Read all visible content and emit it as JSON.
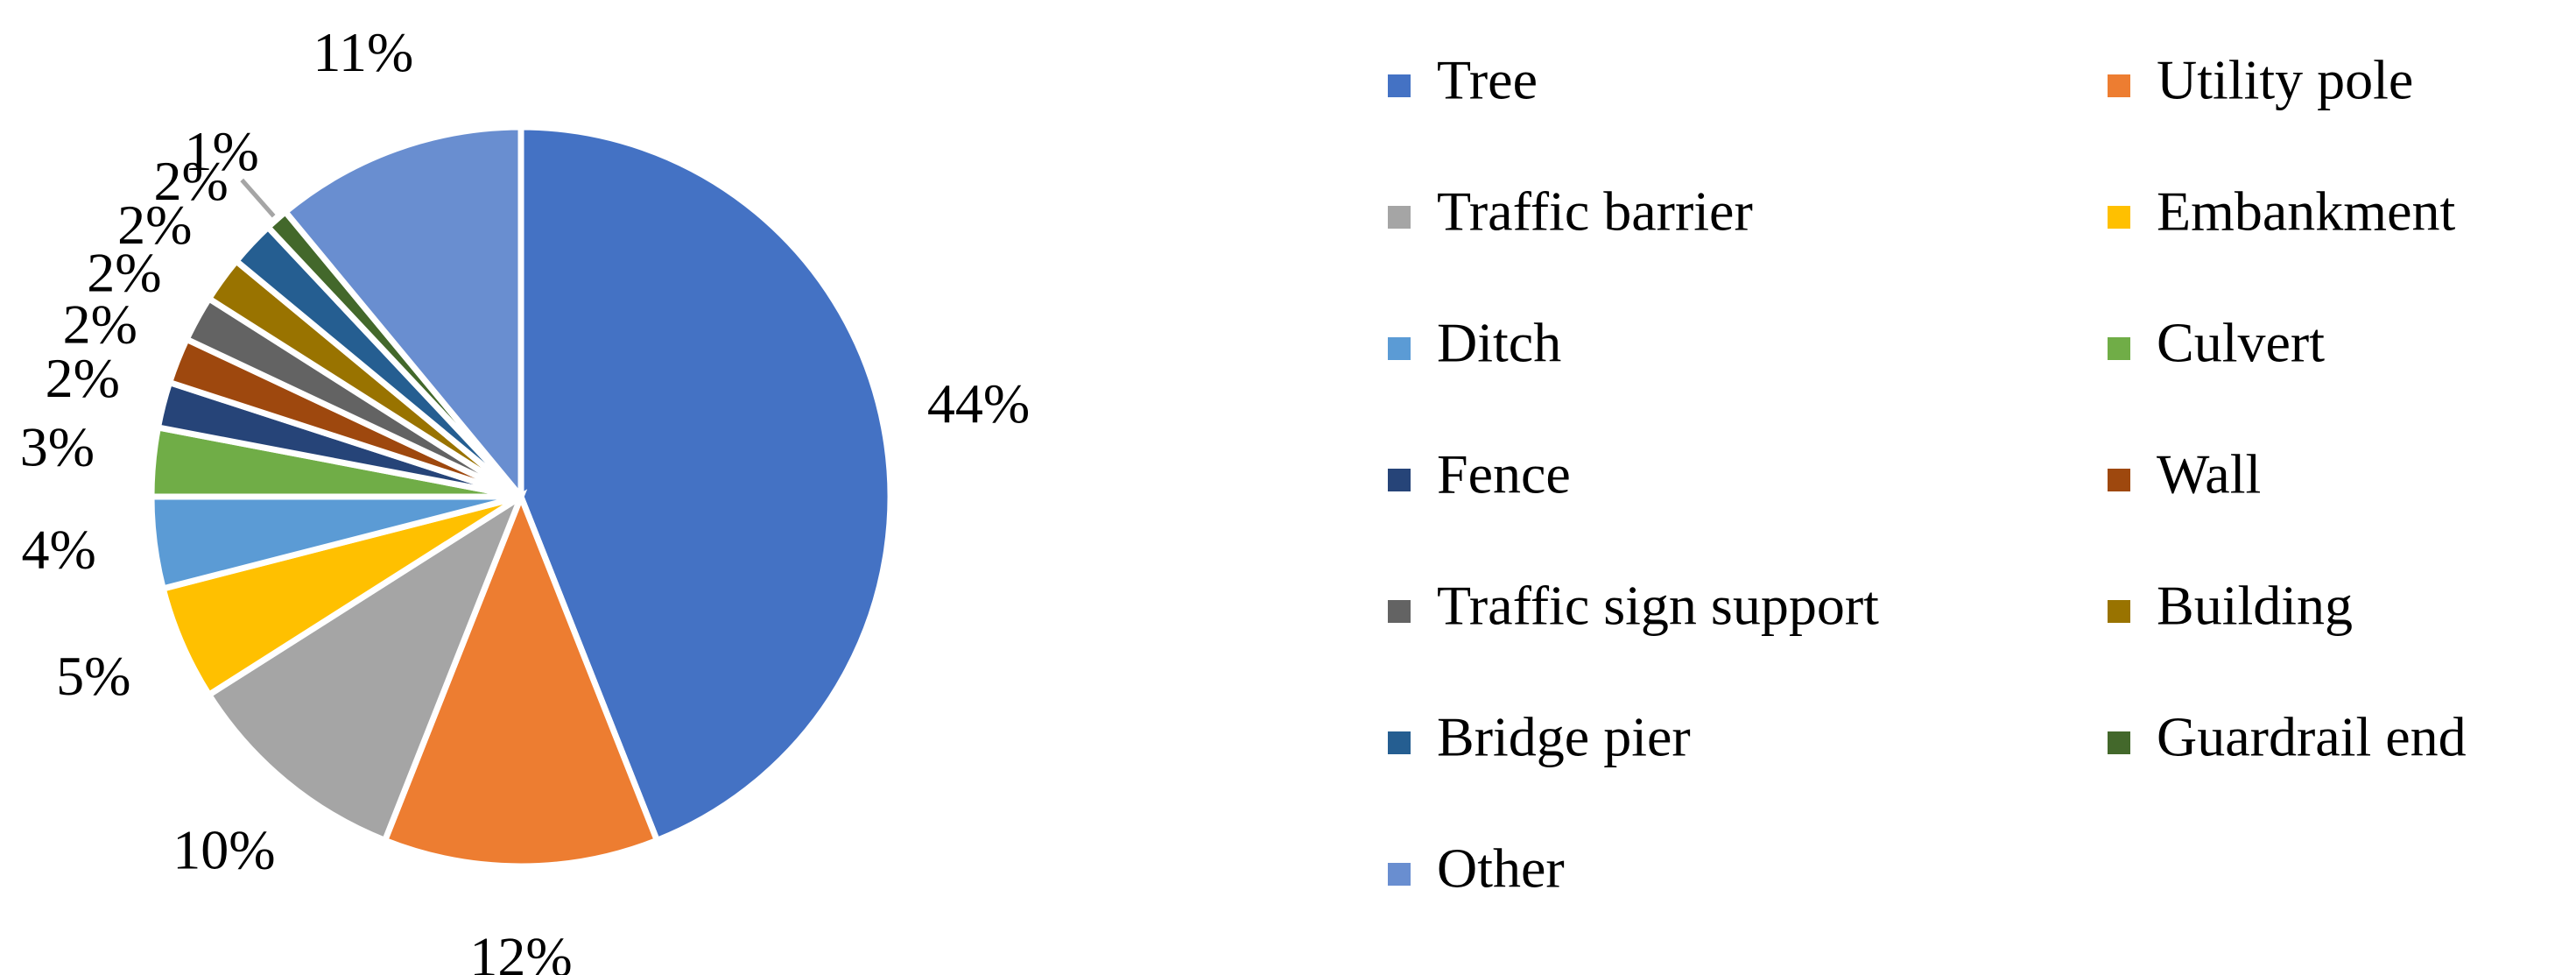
{
  "chart_data": {
    "type": "pie",
    "categories": [
      "Tree",
      "Utility pole",
      "Traffic barrier",
      "Embankment",
      "Ditch",
      "Culvert",
      "Fence",
      "Wall",
      "Traffic sign support",
      "Building",
      "Bridge pier",
      "Guardrail end",
      "Other"
    ],
    "values": [
      44,
      12,
      10,
      5,
      4,
      3,
      2,
      2,
      2,
      2,
      2,
      1,
      11
    ],
    "value_labels": [
      "44%",
      "12%",
      "10%",
      "5%",
      "4%",
      "3%",
      "2%",
      "2%",
      "2%",
      "2%",
      "2%",
      "1%",
      "11%"
    ],
    "colors": [
      "#4472c4",
      "#ed7d31",
      "#a5a5a5",
      "#ffc000",
      "#5b9bd5",
      "#70ad47",
      "#264478",
      "#9e480e",
      "#636363",
      "#997300",
      "#255e91",
      "#43682b",
      "#698ed0"
    ],
    "legend": "right"
  }
}
